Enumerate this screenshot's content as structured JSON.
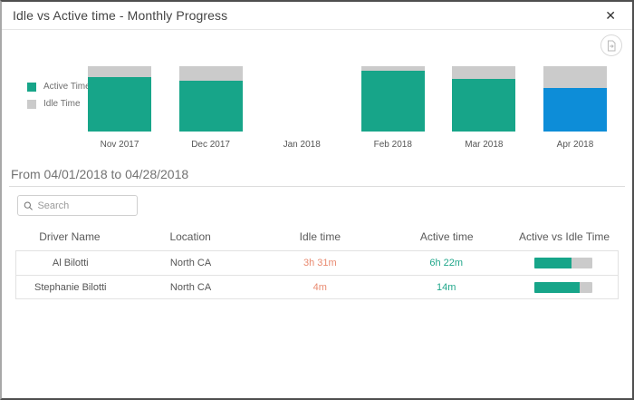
{
  "dialog": {
    "title": "Idle vs Active time - Monthly Progress",
    "close_glyph": "✕"
  },
  "colors": {
    "active": "#17a589",
    "idle": "#cbcbcb",
    "selected": "#0d8dd8",
    "idle_text": "#e98b71",
    "active_text": "#21a78b"
  },
  "chart_data": {
    "type": "bar",
    "stacked": true,
    "unit": "percent-of-month",
    "categories": [
      "Nov 2017",
      "Dec 2017",
      "Jan 2018",
      "Feb 2018",
      "Mar 2018",
      "Apr 2018"
    ],
    "series": [
      {
        "name": "Active Time",
        "color": "#17a589",
        "values_pct": [
          84,
          78,
          0,
          93,
          81,
          66
        ]
      },
      {
        "name": "Idle Time",
        "color": "#cbcbcb",
        "values_pct": [
          16,
          22,
          0,
          7,
          19,
          34
        ]
      }
    ],
    "selected_category": "Apr 2018",
    "selected_color": "#0d8dd8",
    "legend_position": "left",
    "title": "Idle vs Active time - Monthly Progress"
  },
  "period": {
    "label": "From 04/01/2018 to 04/28/2018"
  },
  "search": {
    "placeholder": "Search"
  },
  "table": {
    "columns": [
      "Driver Name",
      "Location",
      "Idle time",
      "Active time",
      "Active vs Idle Time"
    ],
    "rows": [
      {
        "driver": "Al Bilotti",
        "location": "North CA",
        "idle": "3h 31m",
        "active": "6h 22m",
        "active_pct": 64
      },
      {
        "driver": "Stephanie Bilotti",
        "location": "North CA",
        "idle": "4m",
        "active": "14m",
        "active_pct": 78
      }
    ]
  }
}
